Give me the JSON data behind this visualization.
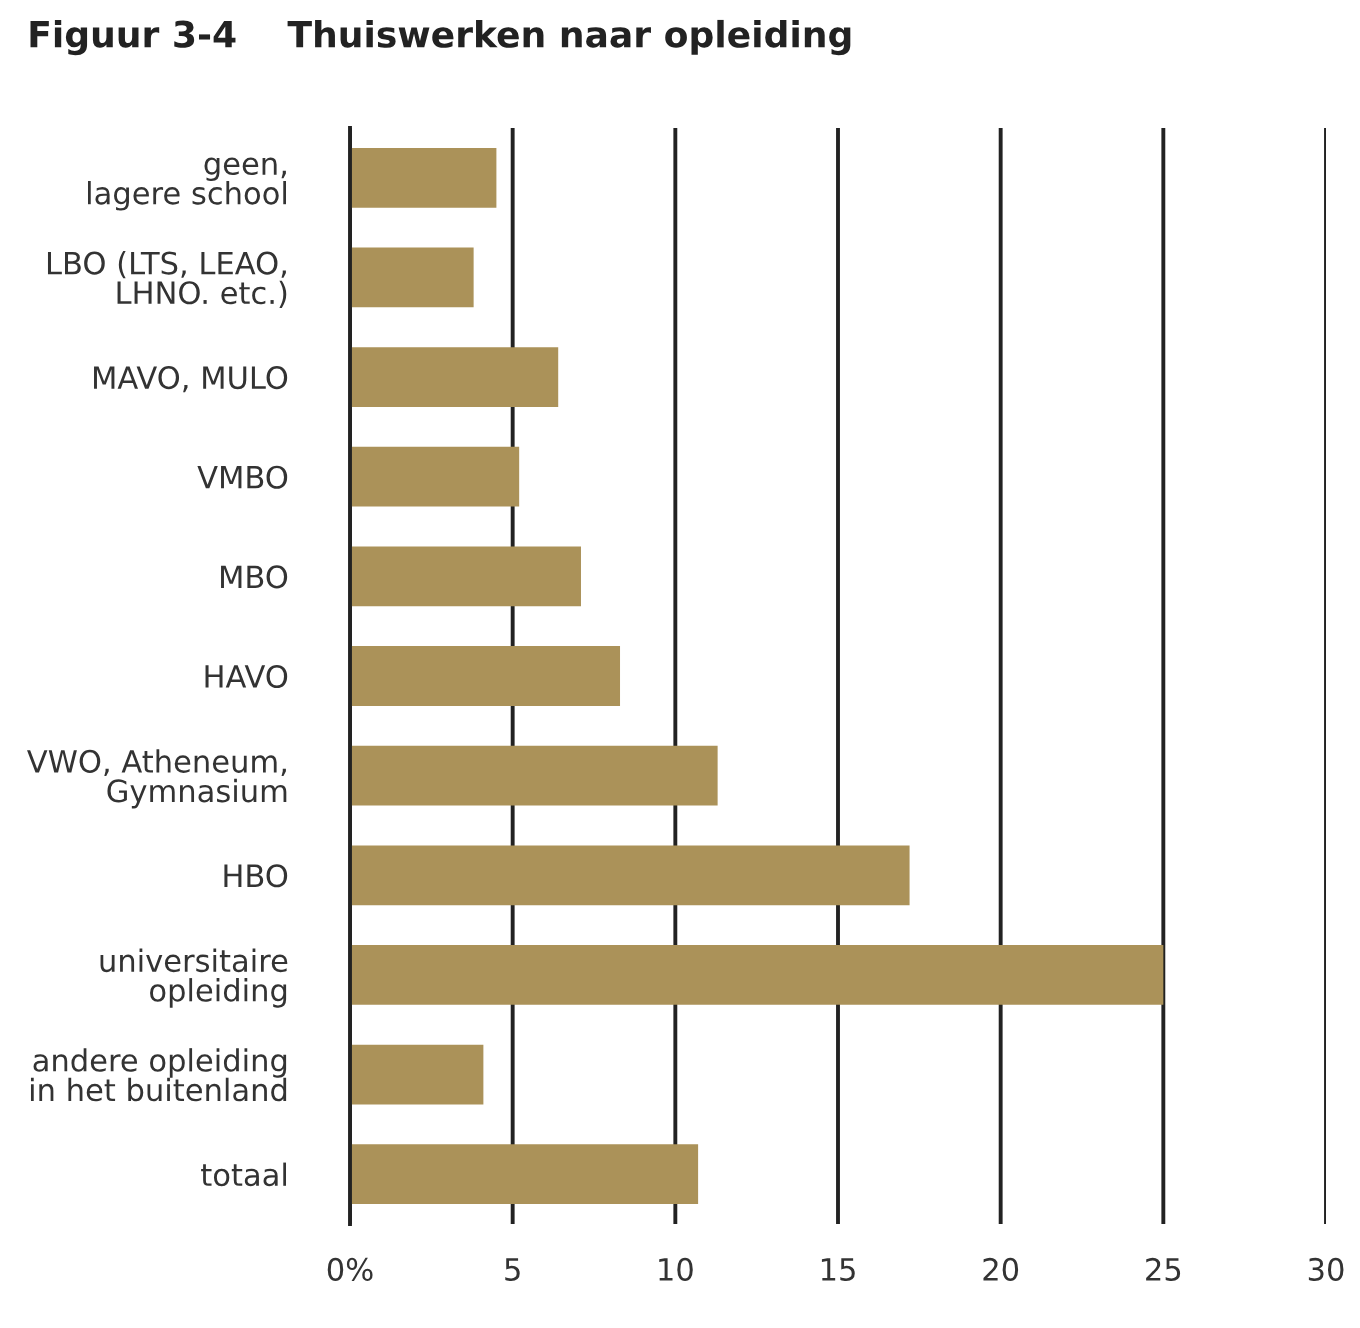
{
  "chart_data": {
    "type": "bar",
    "orientation": "horizontal",
    "title": "Figuur 3-4    Thuiswerken naar opleiding",
    "categories": [
      "geen,\nlagere school",
      "LBO (LTS, LEAO,\nLHNO. etc.)",
      "MAVO, MULO",
      "VMBO",
      "MBO",
      "HAVO",
      "VWO, Atheneum,\nGymnasium",
      "HBO",
      "universitaire\nopleiding",
      "andere opleiding\nin het buitenland",
      "totaal"
    ],
    "values": [
      4.5,
      3.8,
      6.4,
      5.2,
      7.1,
      8.3,
      11.3,
      17.2,
      25.0,
      4.1,
      10.7
    ],
    "color": "#ab9259",
    "xlim": [
      0,
      30
    ],
    "xticks": [
      {
        "value": 0,
        "label": "0%"
      },
      5,
      10,
      15,
      20,
      25,
      30
    ],
    "grid": "x",
    "legend": false
  }
}
